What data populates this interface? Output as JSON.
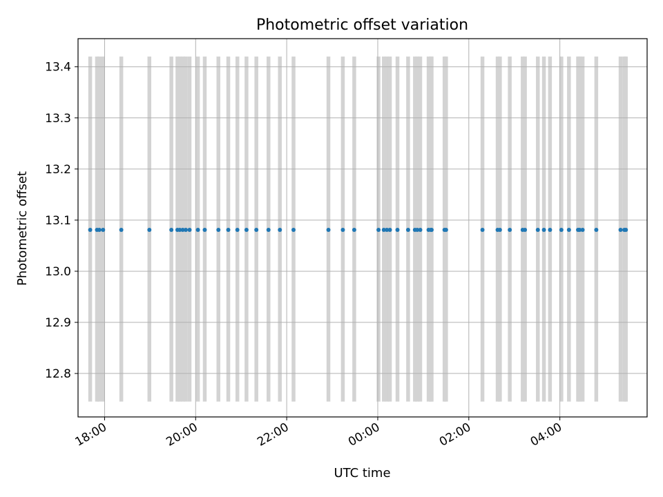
{
  "chart_data": {
    "type": "scatter",
    "title": "Photometric offset variation",
    "xlabel": "UTC time",
    "ylabel": "Photometric offset",
    "x_time_range": [
      "17:25",
      "05:55"
    ],
    "ylim": [
      12.715,
      13.455
    ],
    "grid": true,
    "x_ticks": [
      "18:00",
      "20:00",
      "22:00",
      "00:00",
      "02:00",
      "04:00"
    ],
    "y_ticks": [
      "12.8",
      "12.9",
      "13.0",
      "13.1",
      "13.2",
      "13.3",
      "13.4"
    ],
    "point_color": "#1f77b4",
    "band_color": "#d3d3d3",
    "band_range": [
      12.745,
      13.42
    ],
    "offset_value": 13.081,
    "x_times": [
      "17:41",
      "17:50",
      "17:53",
      "17:58",
      "18:22",
      "18:59",
      "19:28",
      "19:36",
      "19:39",
      "19:43",
      "19:47",
      "19:52",
      "20:03",
      "20:12",
      "20:30",
      "20:43",
      "20:55",
      "21:07",
      "21:20",
      "21:36",
      "21:51",
      "22:09",
      "22:55",
      "23:14",
      "23:29",
      "00:01",
      "00:08",
      "00:12",
      "00:16",
      "00:26",
      "00:40",
      "00:49",
      "00:52",
      "00:56",
      "01:07",
      "01:10",
      "01:11",
      "01:28",
      "01:30",
      "02:18",
      "02:38",
      "02:41",
      "02:54",
      "03:11",
      "03:14",
      "03:31",
      "03:39",
      "03:47",
      "04:02",
      "04:12",
      "04:24",
      "04:26",
      "04:30",
      "04:48",
      "05:20",
      "05:25",
      "05:27"
    ]
  }
}
